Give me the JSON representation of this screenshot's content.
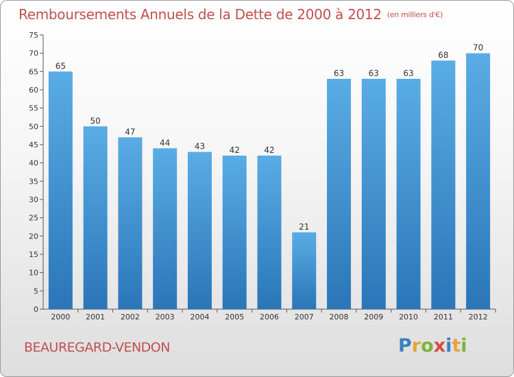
{
  "header": {
    "title": "Remboursements Annuels de la Dette de 2000 à 2012",
    "unit": "(en milliers d'€)"
  },
  "footer": {
    "place": "BEAUREGARD-VENDON",
    "logo_letters": [
      {
        "char": "P",
        "color": "#3a7fc1"
      },
      {
        "char": "r",
        "color": "#e8a33a"
      },
      {
        "char": "o",
        "color": "#7bb33b"
      },
      {
        "char": "x",
        "color": "#d94b3a"
      },
      {
        "char": "i",
        "color": "#3a7fc1"
      },
      {
        "char": "t",
        "color": "#e8a33a"
      },
      {
        "char": "i",
        "color": "#7bb33b"
      }
    ]
  },
  "colors": {
    "bar_light": "#5aace5",
    "bar_dark": "#2a76b8",
    "axis": "#555555",
    "grid_tick": "#555555"
  },
  "chart_data": {
    "type": "bar",
    "title": "Remboursements Annuels de la Dette de 2000 à 2012",
    "subtitle": "(en milliers d'€)",
    "categories": [
      "2000",
      "2001",
      "2002",
      "2003",
      "2004",
      "2005",
      "2006",
      "2007",
      "2008",
      "2009",
      "2010",
      "2011",
      "2012"
    ],
    "values": [
      65,
      50,
      47,
      44,
      43,
      42,
      42,
      21,
      63,
      63,
      63,
      68,
      70
    ],
    "value_labels": [
      "65",
      "50",
      "47",
      "44",
      "43",
      "42",
      "42",
      "21",
      "63",
      "63",
      "63",
      "68",
      "70"
    ],
    "ylim": [
      0,
      75
    ],
    "yticks": [
      0,
      5,
      10,
      15,
      20,
      25,
      30,
      35,
      40,
      45,
      50,
      55,
      60,
      65,
      70,
      75
    ],
    "ytick_labels": [
      "0",
      "5",
      "10",
      "15",
      "20",
      "25",
      "30",
      "35",
      "40",
      "45",
      "50",
      "55",
      "60",
      "65",
      "70",
      "75"
    ],
    "xlabel": "",
    "ylabel": "",
    "grid": false,
    "legend": "none"
  }
}
